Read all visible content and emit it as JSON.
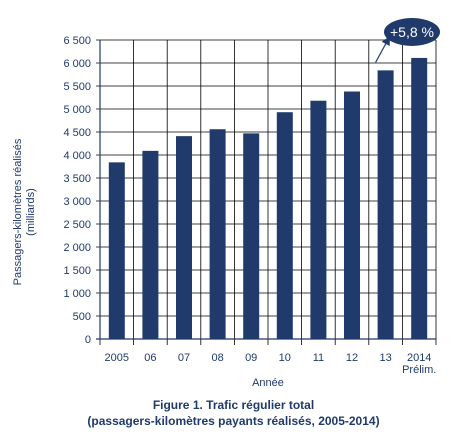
{
  "chart_data": {
    "type": "bar",
    "categories": [
      "2005",
      "06",
      "07",
      "08",
      "09",
      "10",
      "11",
      "12",
      "13",
      "2014"
    ],
    "category_sublabels": {
      "2014": "Prélim."
    },
    "values": [
      3840,
      4090,
      4410,
      4560,
      4470,
      4930,
      5180,
      5380,
      5840,
      6110
    ],
    "ylim": [
      0,
      6500
    ],
    "yticks": [
      0,
      500,
      1000,
      1500,
      2000,
      2500,
      3000,
      3500,
      4000,
      4500,
      5000,
      5500,
      6000,
      6500
    ],
    "ytick_labels": [
      "0",
      "500",
      "1 000",
      "1 500",
      "2 000",
      "2 500",
      "3 000",
      "3 500",
      "4 000",
      "4 500",
      "5 000",
      "5 500",
      "6 000",
      "6 500"
    ],
    "xlabel": "Année",
    "ylabel_line1": "Passagers-kilomètres réalisés",
    "ylabel_line2": "(milliards)",
    "annotation": "+5,8 %",
    "grid": true,
    "colors": {
      "bar": "#1f3a6b",
      "axis": "#1f3a6b",
      "grid": "#000000",
      "text": "#1f3a6b"
    }
  },
  "caption": {
    "line1": "Figure 1.  Trafic régulier total",
    "line2": "(passagers-kilomètres payants réalisés, 2005-2014)"
  }
}
